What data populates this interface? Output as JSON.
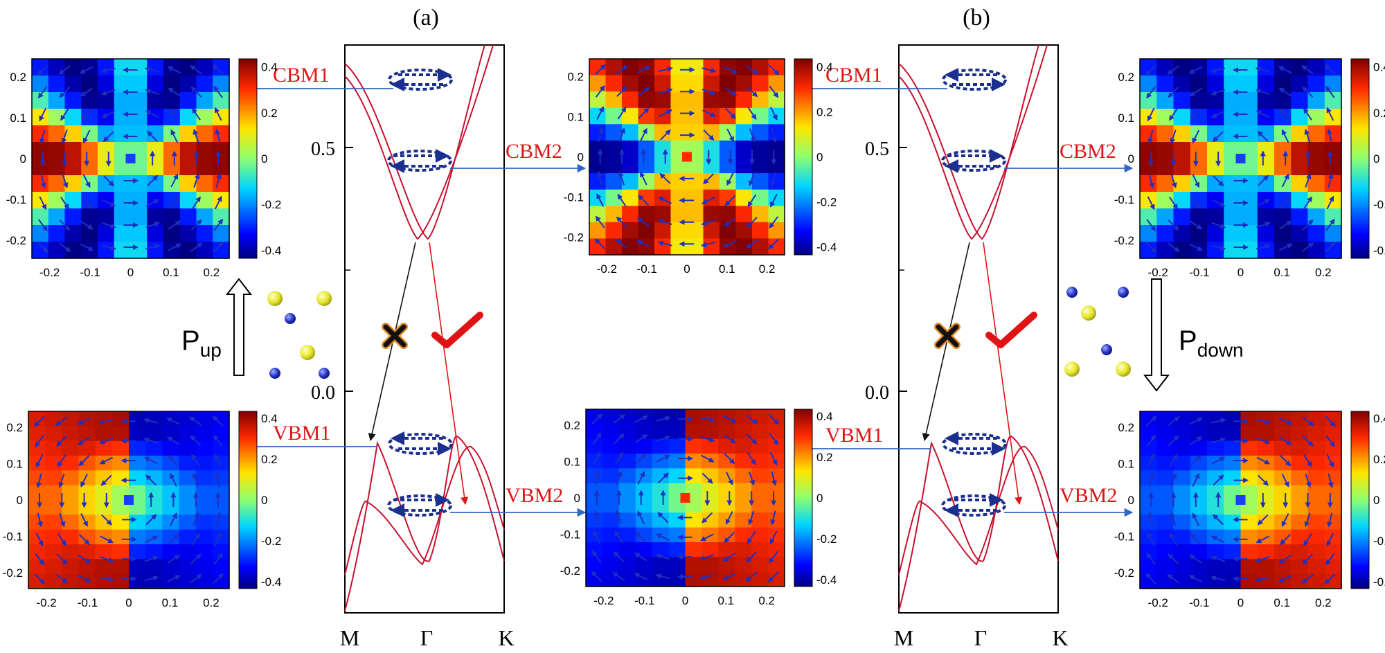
{
  "panels": [
    {
      "label": "(a)",
      "band": {
        "y_ticks": [
          "0.5",
          "0.0"
        ],
        "k_labels": [
          "M",
          "Γ",
          "K"
        ]
      },
      "state_labels": [
        "CBM1",
        "CBM2",
        "VBM1",
        "VBM2"
      ],
      "polarization": {
        "symbol": "P",
        "subscript": "up"
      },
      "transition_marks": [
        "forbidden-x-mark",
        "allowed-check-mark"
      ]
    },
    {
      "label": "(b)",
      "band": {
        "y_ticks": [
          "0.5",
          "0.0"
        ],
        "k_labels": [
          "M",
          "Γ",
          "K"
        ]
      },
      "state_labels": [
        "CBM1",
        "CBM2",
        "VBM1",
        "VBM2"
      ],
      "polarization": {
        "symbol": "P",
        "subscript": "down"
      },
      "transition_marks": [
        "forbidden-x-mark",
        "allowed-check-mark"
      ]
    }
  ],
  "spin_map": {
    "x_ticks": [
      "-0.2",
      "-0.1",
      "0",
      "0.1",
      "0.2"
    ],
    "y_ticks": [
      "0.2",
      "0.1",
      "0",
      "-0.1",
      "-0.2"
    ],
    "colorbar_ticks": [
      "0.4",
      "0.2",
      "0",
      "-0.2",
      "-0.4"
    ]
  },
  "colors": {
    "band_line": "#c8102e",
    "pointer_arrow": "#2e67c4",
    "spin_arrow": "#1f2fbf",
    "loop": "#1b2f8f",
    "label_red": "#e01414",
    "atom_yellow": "#e6e62a",
    "atom_blue": "#2533c9"
  }
}
